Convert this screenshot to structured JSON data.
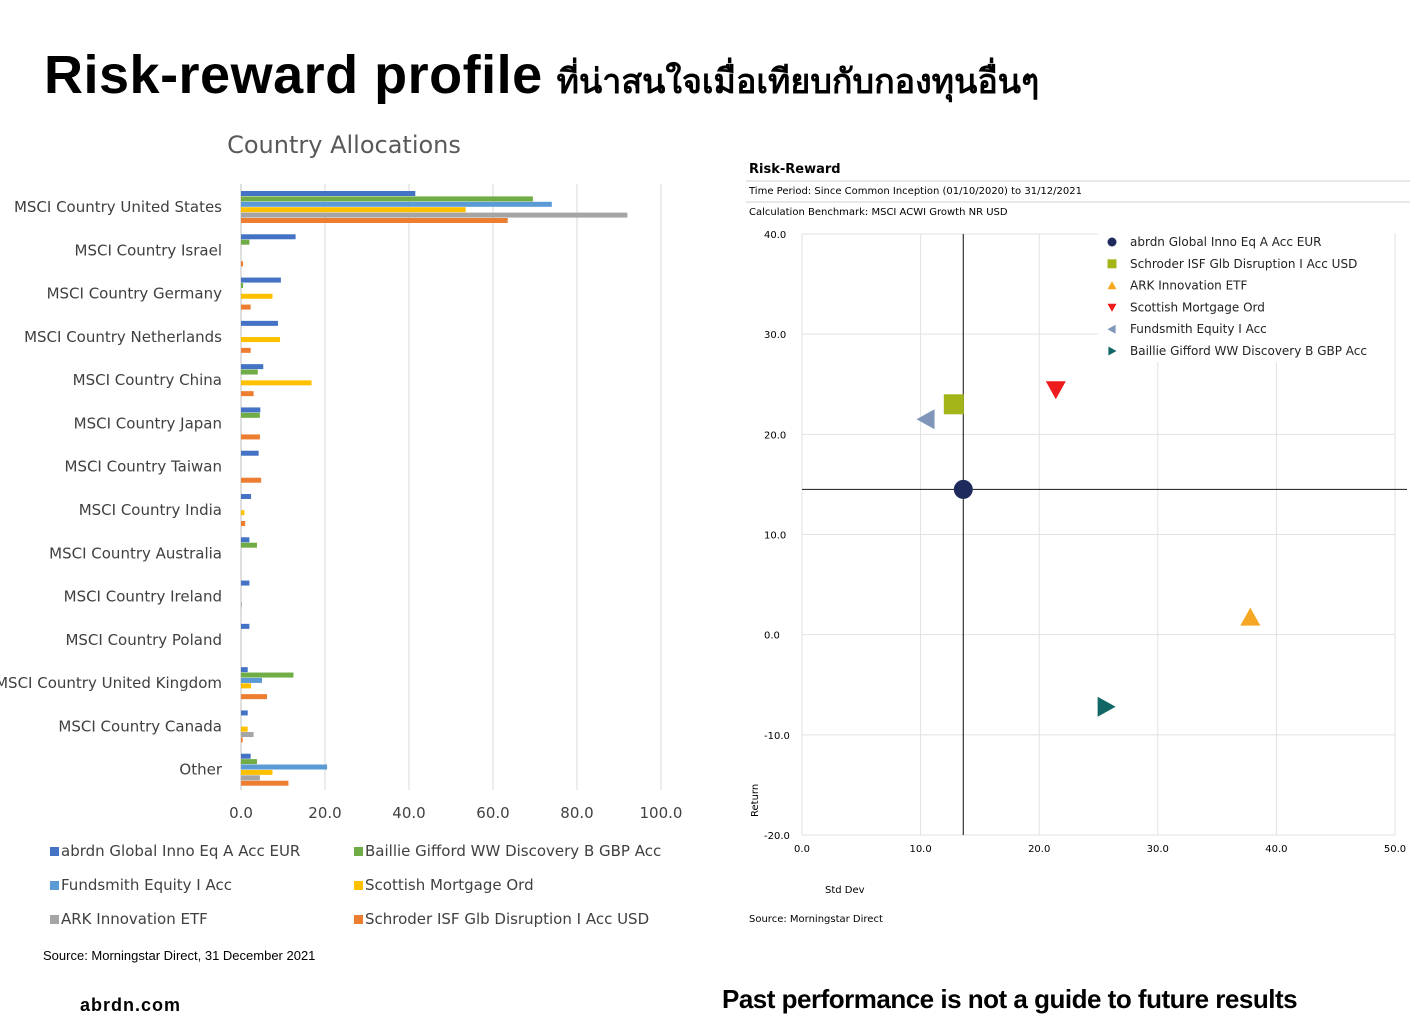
{
  "page": {
    "title_main": "Risk-reward profile",
    "title_sub": "ที่น่าสนใจเมื่อเทียบกับกองทุนอื่นๆ",
    "source_left": "Source: Morningstar Direct, 31 December 2021",
    "brand": "abrdn.com",
    "disclaimer": "Past performance is not a guide to future results"
  },
  "chart_data": [
    {
      "type": "bar",
      "orientation": "horizontal",
      "title": "Country Allocations",
      "categories": [
        "MSCI Country United States",
        "MSCI Country Israel",
        "MSCI Country Germany",
        "MSCI Country Netherlands",
        "MSCI Country China",
        "MSCI Country Japan",
        "MSCI Country Taiwan",
        "MSCI Country India",
        "MSCI Country Australia",
        "MSCI Country Ireland",
        "MSCI Country Poland",
        "MSCI Country United Kingdom",
        "MSCI Country Canada",
        "Other"
      ],
      "series": [
        {
          "name": "abrdn Global Inno Eq A Acc EUR",
          "color": "#4472C4",
          "values": [
            41.5,
            13,
            9.5,
            8.8,
            5.3,
            4.6,
            4.2,
            2.4,
            2,
            2,
            2,
            1.6,
            1.6,
            2.3
          ]
        },
        {
          "name": "Baillie Gifford WW Discovery B GBP Acc",
          "color": "#70AD47",
          "values": [
            69.5,
            2,
            0.5,
            0,
            4,
            4.5,
            0,
            0,
            3.8,
            0,
            0,
            12.5,
            0,
            3.8
          ]
        },
        {
          "name": "Fundsmith Equity I Acc",
          "color": "#5B9BD5",
          "values": [
            74,
            0,
            0,
            0,
            0,
            0,
            0,
            0,
            0,
            0,
            0,
            5,
            0,
            20.5
          ]
        },
        {
          "name": "Scottish Mortgage Ord",
          "color": "#FFC000",
          "values": [
            53.5,
            0,
            7.5,
            9.3,
            16.8,
            0,
            0,
            0.8,
            0,
            0,
            0,
            2.4,
            1.6,
            7.5
          ]
        },
        {
          "name": "ARK Innovation ETF",
          "color": "#A5A5A5",
          "values": [
            92,
            0,
            0,
            0,
            0,
            0,
            0,
            0,
            0,
            0.2,
            0,
            0,
            3,
            4.5
          ]
        },
        {
          "name": "Schroder ISF Glb Disruption I Acc USD",
          "color": "#ED7D31",
          "values": [
            63.5,
            0.5,
            2.3,
            2.3,
            3,
            4.5,
            4.8,
            1,
            0,
            0,
            0,
            6.2,
            0.4,
            11.3
          ]
        }
      ],
      "xticks": [
        "0.0",
        "20.0",
        "40.0",
        "60.0",
        "80.0",
        "100.0"
      ],
      "xlim": [
        0,
        100
      ],
      "grid": true,
      "legend_position": "bottom"
    },
    {
      "type": "scatter",
      "title": "Risk-Reward",
      "subtitle_1": "Time Period: Since Common Inception (01/10/2020) to 31/12/2021",
      "subtitle_2": "Calculation Benchmark: MSCI ACWI Growth NR USD",
      "xlabel": "Std Dev",
      "ylabel": "Return",
      "xlim": [
        0,
        50
      ],
      "ylim": [
        -20,
        40
      ],
      "xticks": [
        "0.0",
        "10.0",
        "20.0",
        "30.0",
        "40.0",
        "50.0"
      ],
      "yticks": [
        "-20.0",
        "-10.0",
        "0.0",
        "10.0",
        "20.0",
        "30.0",
        "40.0"
      ],
      "crosshair": {
        "x": 13.6,
        "y": 14.5
      },
      "grid": true,
      "legend_position": "top-right",
      "source": "Source: Morningstar Direct",
      "points": [
        {
          "name": "abrdn Global Inno Eq A Acc EUR",
          "x": 13.6,
          "y": 14.5,
          "marker": "circle",
          "color": "#1F2A5C"
        },
        {
          "name": "Schroder ISF Glb Disruption I Acc USD",
          "x": 12.8,
          "y": 23,
          "marker": "square",
          "color": "#A4B519"
        },
        {
          "name": "ARK Innovation ETF",
          "x": 37.8,
          "y": 1.7,
          "marker": "triangle-up",
          "color": "#F5A623"
        },
        {
          "name": "Scottish Mortgage Ord",
          "x": 21.4,
          "y": 24.5,
          "marker": "triangle-down",
          "color": "#EE1C1C"
        },
        {
          "name": "Fundsmith Equity I Acc",
          "x": 10.5,
          "y": 21.5,
          "marker": "triangle-left",
          "color": "#7F96B8"
        },
        {
          "name": "Baillie Gifford WW Discovery B GBP Acc",
          "x": 25.6,
          "y": -7.2,
          "marker": "triangle-right",
          "color": "#116666"
        }
      ]
    }
  ]
}
